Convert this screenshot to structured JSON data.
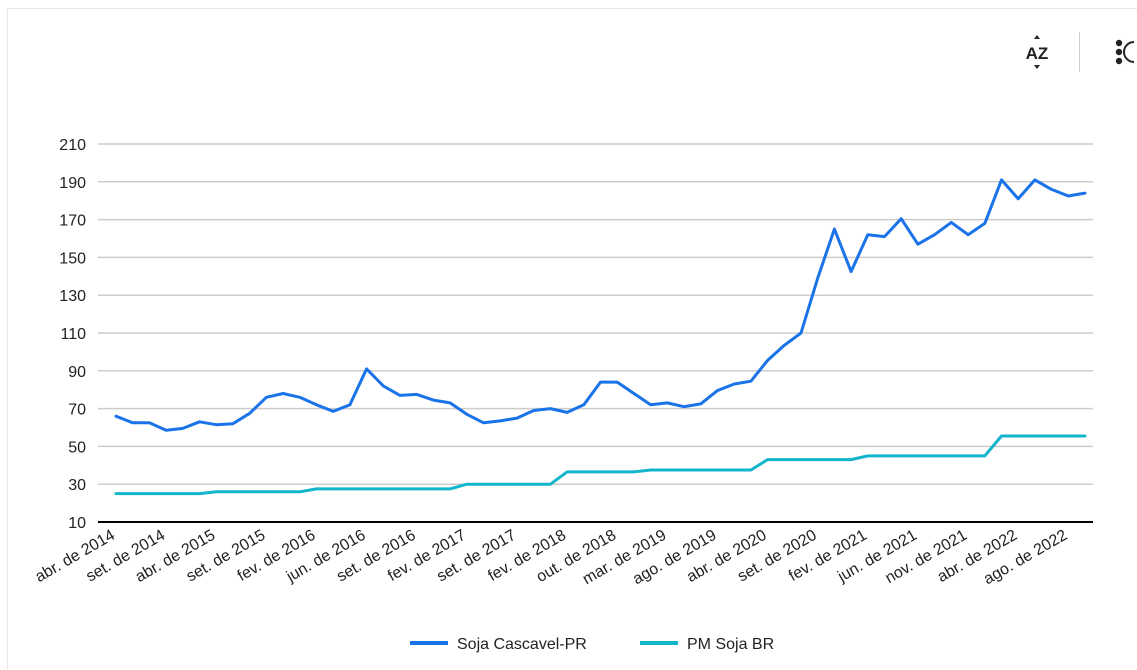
{
  "toolbar": {
    "sort_icon": "sort-az-icon",
    "more_icon": "more-vertical-icon"
  },
  "chart_data": {
    "type": "line",
    "title": "",
    "xlabel": "",
    "ylabel": "",
    "ylim": [
      10,
      210
    ],
    "yticks": [
      10,
      30,
      50,
      70,
      90,
      110,
      130,
      150,
      170,
      190,
      210
    ],
    "grid": true,
    "legend_position": "bottom",
    "xtick_labels": [
      "abr. de 2014",
      "set. de 2014",
      "abr. de 2015",
      "set. de 2015",
      "fev. de 2016",
      "jun. de 2016",
      "set. de 2016",
      "fev. de 2017",
      "set. de 2017",
      "fev. de 2018",
      "out. de 2018",
      "mar. de 2019",
      "ago. de 2019",
      "abr. de 2020",
      "set. de 2020",
      "fev. de 2021",
      "jun. de 2021",
      "nov. de 2021",
      "abr. de 2022",
      "ago. de 2022"
    ],
    "xtick_index": [
      0,
      3,
      6,
      9,
      12,
      15,
      18,
      21,
      24,
      27,
      30,
      33,
      36,
      39,
      42,
      45,
      48,
      51,
      54,
      57
    ],
    "point_count": 59,
    "series": [
      {
        "name": "Soja Cascavel-PR",
        "color": "#1a73e8",
        "values": [
          66,
          62.5,
          62.5,
          58.5,
          59.5,
          63,
          61.5,
          62,
          67.5,
          76,
          78,
          76,
          72,
          68.5,
          72,
          91,
          82,
          77,
          77.5,
          74.5,
          73,
          67,
          62.5,
          63.5,
          65,
          69,
          70,
          68,
          72,
          84,
          84,
          78,
          72,
          73,
          71,
          72.5,
          79.5,
          83,
          84.5,
          95.5,
          103.5,
          110,
          139,
          165,
          142.5,
          162,
          161,
          170.5,
          157,
          162,
          168.5,
          162,
          168,
          191,
          181,
          191,
          186,
          182.5,
          184
        ]
      },
      {
        "name": "PM Soja BR",
        "color": "#12b5cb",
        "values": [
          25,
          25,
          25,
          25,
          25,
          25,
          26,
          26,
          26,
          26,
          26,
          26,
          27.5,
          27.5,
          27.5,
          27.5,
          27.5,
          27.5,
          27.5,
          27.5,
          27.5,
          30,
          30,
          30,
          30,
          30,
          30,
          36.5,
          36.5,
          36.5,
          36.5,
          36.5,
          37.5,
          37.5,
          37.5,
          37.5,
          37.5,
          37.5,
          37.5,
          43,
          43,
          43,
          43,
          43,
          43,
          45,
          45,
          45,
          45,
          45,
          45,
          45,
          45,
          55.5,
          55.5,
          55.5,
          55.5,
          55.5,
          55.5
        ]
      }
    ]
  }
}
